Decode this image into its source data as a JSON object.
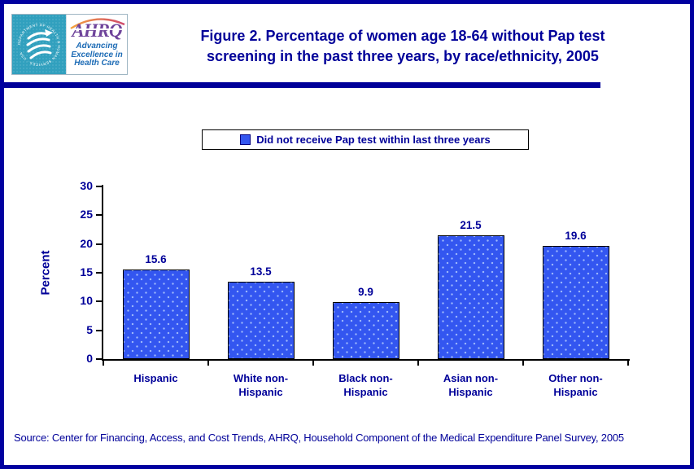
{
  "header": {
    "logo": {
      "seal_ring_text": "DEPARTMENT OF HEALTH & HUMAN SERVICES · USA",
      "ahrq_acronym": "AHRQ",
      "tagline_lines": [
        "Advancing",
        "Excellence in",
        "Health Care"
      ]
    },
    "title_lines": [
      "Figure 2. Percentage of women age 18-64 without Pap test",
      "screening in the past three years, by race/ethnicity, 2005"
    ]
  },
  "legend": {
    "label": "Did not receive Pap test within last three years"
  },
  "chart_data": {
    "type": "bar",
    "title": "Figure 2. Percentage of women age 18-64 without Pap test screening in the past three years, by race/ethnicity, 2005",
    "categories": [
      "Hispanic",
      "White non-Hispanic",
      "Black non-Hispanic",
      "Asian non-Hispanic",
      "Other non-Hispanic"
    ],
    "category_label_lines": [
      [
        "Hispanic"
      ],
      [
        "White non-",
        "Hispanic"
      ],
      [
        "Black non-",
        "Hispanic"
      ],
      [
        "Asian non-",
        "Hispanic"
      ],
      [
        "Other non-",
        "Hispanic"
      ]
    ],
    "series": [
      {
        "name": "Did not receive Pap test within last three years",
        "values": [
          15.6,
          13.5,
          9.9,
          21.5,
          19.6
        ]
      }
    ],
    "xlabel": "",
    "ylabel": "Percent",
    "ylim": [
      0,
      30
    ],
    "yticks": [
      0,
      5,
      10,
      15,
      20,
      25,
      30
    ],
    "grid": false,
    "legend_position": "top-center",
    "value_label_decimals": 1
  },
  "footer": {
    "source": "Source: Center for Financing, Access, and Cost Trends, AHRQ, Household Component of the Medical Expenditure Panel Survey, 2005"
  },
  "colors": {
    "navy": "#000099",
    "page_border": "#0000a0",
    "bar_blue": "#3356f0",
    "bar_dot": "#9db8fb",
    "logo_teal": "#31a0be",
    "ahrq_purple": "#6f449b",
    "tagline_blue": "#1c6bb5",
    "arc_orange": "#f5a33b",
    "arc_red": "#cf4a6e",
    "axis_black": "#000000"
  }
}
